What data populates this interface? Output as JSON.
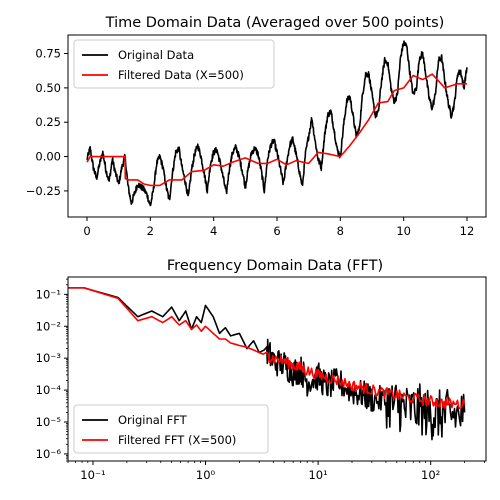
{
  "chart_data": [
    {
      "type": "line",
      "title": "Time Domain Data (Averaged over 500 points)",
      "xlabel": "",
      "ylabel": "",
      "xlim": [
        -0.6,
        12.6
      ],
      "ylim": [
        -0.44,
        0.885
      ],
      "xticks": [
        0,
        2,
        4,
        6,
        8,
        10,
        12
      ],
      "yticks": [
        -0.25,
        0.0,
        0.25,
        0.5,
        0.75
      ],
      "ytick_labels": [
        "−0.25",
        "0.00",
        "0.25",
        "0.50",
        "0.75"
      ],
      "legend": "top-left",
      "grid": false,
      "series": [
        {
          "name": "Original Data",
          "color": "#000000",
          "x": [
            0.0,
            0.1,
            0.2,
            0.3,
            0.4,
            0.5,
            0.6,
            0.7,
            0.8,
            0.9,
            1.0,
            1.1,
            1.2,
            1.3,
            1.4,
            1.5,
            1.6,
            1.7,
            1.8,
            1.9,
            2.0,
            2.1,
            2.2,
            2.3,
            2.4,
            2.5,
            2.6,
            2.7,
            2.8,
            2.9,
            3.0,
            3.1,
            3.2,
            3.3,
            3.4,
            3.5,
            3.6,
            3.7,
            3.8,
            3.9,
            4.0,
            4.1,
            4.2,
            4.3,
            4.4,
            4.5,
            4.6,
            4.7,
            4.8,
            4.9,
            5.0,
            5.1,
            5.2,
            5.3,
            5.4,
            5.5,
            5.6,
            5.7,
            5.8,
            5.9,
            6.0,
            6.1,
            6.2,
            6.3,
            6.4,
            6.5,
            6.6,
            6.7,
            6.8,
            6.9,
            7.0,
            7.1,
            7.2,
            7.3,
            7.4,
            7.5,
            7.6,
            7.7,
            7.8,
            7.9,
            8.0,
            8.1,
            8.2,
            8.3,
            8.4,
            8.5,
            8.6,
            8.7,
            8.8,
            8.9,
            9.0,
            9.1,
            9.2,
            9.3,
            9.4,
            9.5,
            9.6,
            9.7,
            9.8,
            9.9,
            10.0,
            10.1,
            10.2,
            10.3,
            10.4,
            10.5,
            10.6,
            10.7,
            10.8,
            10.9,
            11.0,
            11.1,
            11.2,
            11.3,
            11.4,
            11.5,
            11.6,
            11.7,
            11.8,
            11.9,
            12.0
          ],
          "values": [
            -0.02,
            0.06,
            -0.08,
            -0.16,
            -0.05,
            0.03,
            -0.1,
            -0.18,
            -0.02,
            -0.12,
            -0.2,
            -0.08,
            0.0,
            -0.22,
            -0.34,
            -0.27,
            -0.2,
            -0.22,
            -0.24,
            -0.28,
            -0.36,
            -0.24,
            -0.05,
            0.0,
            -0.08,
            -0.22,
            -0.32,
            -0.12,
            0.03,
            0.06,
            -0.08,
            -0.18,
            -0.3,
            -0.1,
            0.02,
            0.08,
            0.0,
            -0.12,
            -0.25,
            -0.05,
            0.03,
            0.05,
            -0.04,
            -0.15,
            -0.27,
            -0.08,
            0.03,
            0.07,
            0.0,
            -0.1,
            -0.22,
            -0.08,
            0.03,
            0.06,
            0.02,
            -0.1,
            -0.25,
            -0.02,
            0.08,
            0.12,
            0.03,
            -0.08,
            -0.2,
            -0.05,
            0.08,
            0.13,
            0.02,
            -0.1,
            -0.22,
            0.02,
            0.15,
            0.28,
            0.12,
            -0.02,
            -0.08,
            0.15,
            0.3,
            0.33,
            0.2,
            0.05,
            0.0,
            0.22,
            0.4,
            0.44,
            0.3,
            0.15,
            0.2,
            0.45,
            0.6,
            0.6,
            0.45,
            0.3,
            0.32,
            0.55,
            0.7,
            0.68,
            0.5,
            0.4,
            0.45,
            0.72,
            0.83,
            0.8,
            0.6,
            0.45,
            0.5,
            0.72,
            0.75,
            0.6,
            0.43,
            0.35,
            0.45,
            0.7,
            0.72,
            0.55,
            0.4,
            0.3,
            0.38,
            0.6,
            0.62,
            0.5,
            0.65
          ]
        },
        {
          "name": "Filtered Data (X=500)",
          "color": "#ff0000",
          "x": [
            0.0,
            0.05,
            0.1,
            1.2,
            1.21,
            1.3,
            1.6,
            1.8,
            2.0,
            2.3,
            2.6,
            3.0,
            3.3,
            3.7,
            4.0,
            4.3,
            4.6,
            5.0,
            5.4,
            5.7,
            6.0,
            6.3,
            6.6,
            7.0,
            7.3,
            7.6,
            8.0,
            8.3,
            8.6,
            8.9,
            9.2,
            9.5,
            9.7,
            10.0,
            10.3,
            10.6,
            10.9,
            11.3,
            11.7,
            12.0
          ],
          "values": [
            -0.04,
            -0.02,
            0.0,
            0.0,
            -0.16,
            -0.17,
            -0.17,
            -0.2,
            -0.21,
            -0.21,
            -0.17,
            -0.17,
            -0.11,
            -0.1,
            -0.06,
            -0.07,
            -0.04,
            -0.01,
            -0.05,
            -0.05,
            -0.02,
            -0.06,
            -0.03,
            -0.05,
            0.03,
            0.02,
            0.0,
            0.08,
            0.17,
            0.27,
            0.39,
            0.4,
            0.48,
            0.5,
            0.59,
            0.56,
            0.6,
            0.5,
            0.53,
            0.53
          ]
        }
      ]
    },
    {
      "type": "line",
      "title": "Frequency Domain Data (FFT)",
      "xlabel": "",
      "ylabel": "",
      "xscale": "log",
      "yscale": "log",
      "xlim": [
        0.06,
        310
      ],
      "ylim": [
        6e-07,
        0.35
      ],
      "xticks": [
        0.1,
        1,
        10,
        100
      ],
      "xtick_labels": [
        "10⁻¹",
        "10⁰",
        "10¹",
        "10²"
      ],
      "yticks": [
        1e-06,
        1e-05,
        0.0001,
        0.001,
        0.01,
        0.1
      ],
      "ytick_labels": [
        "10⁻⁶",
        "10⁻⁵",
        "10⁻⁴",
        "10⁻³",
        "10⁻²",
        "10⁻¹"
      ],
      "legend": "bottom-left",
      "grid": false,
      "series": [
        {
          "name": "Original FFT",
          "color": "#000000",
          "x": [
            0.06,
            0.083,
            0.167,
            0.25,
            0.333,
            0.417,
            0.5,
            0.583,
            0.667,
            0.75,
            0.833,
            0.917,
            1.0,
            1.08,
            1.17,
            1.33,
            1.5,
            1.67,
            2.0,
            2.33,
            2.67,
            3.0,
            3.5,
            4.0,
            5.0,
            6.0,
            7.0,
            8.0,
            10.0,
            12.0,
            15.0,
            20.0,
            25.0,
            30.0,
            40.0,
            50.0,
            60.0,
            80.0,
            100.0,
            120.0,
            150.0,
            200.0
          ],
          "values": [
            0.16,
            0.16,
            0.08,
            0.02,
            0.03,
            0.02,
            0.04,
            0.015,
            0.03,
            0.008,
            0.02,
            0.013,
            0.045,
            0.03,
            0.02,
            0.006,
            0.009,
            0.005,
            0.006,
            0.002,
            0.0035,
            0.0015,
            0.002,
            0.0009,
            0.0007,
            0.0004,
            0.0005,
            0.0002,
            0.0003,
            0.00015,
            0.0002,
            0.0001,
            8e-05,
            6e-05,
            5e-05,
            4e-05,
            3e-05,
            3e-05,
            2e-05,
            2e-05,
            2e-05,
            2e-05
          ]
        },
        {
          "name": "Filtered FFT (X=500)",
          "color": "#ff0000",
          "x": [
            0.06,
            0.083,
            0.167,
            0.25,
            0.333,
            0.417,
            0.5,
            0.583,
            0.667,
            0.75,
            0.833,
            0.917,
            1.0,
            1.17,
            1.33,
            1.5,
            1.67,
            2.0,
            2.33,
            2.67,
            3.0,
            3.5,
            4.0,
            5.0,
            6.0,
            7.0,
            8.0,
            10.0,
            12.0,
            15.0,
            20.0,
            25.0,
            30.0,
            40.0,
            50.0,
            60.0,
            80.0,
            100.0,
            120.0,
            150.0,
            200.0
          ],
          "values": [
            0.16,
            0.16,
            0.075,
            0.015,
            0.02,
            0.013,
            0.02,
            0.011,
            0.015,
            0.008,
            0.011,
            0.007,
            0.01,
            0.006,
            0.004,
            0.004,
            0.003,
            0.0025,
            0.0022,
            0.0018,
            0.0015,
            0.0012,
            0.001,
            0.0008,
            0.0006,
            0.0005,
            0.0004,
            0.0003,
            0.00025,
            0.0002,
            0.00014,
            0.00012,
            0.0001,
            8e-05,
            7e-05,
            6e-05,
            5e-05,
            4.5e-05,
            4e-05,
            3.8e-05,
            3.5e-05
          ]
        }
      ]
    }
  ]
}
